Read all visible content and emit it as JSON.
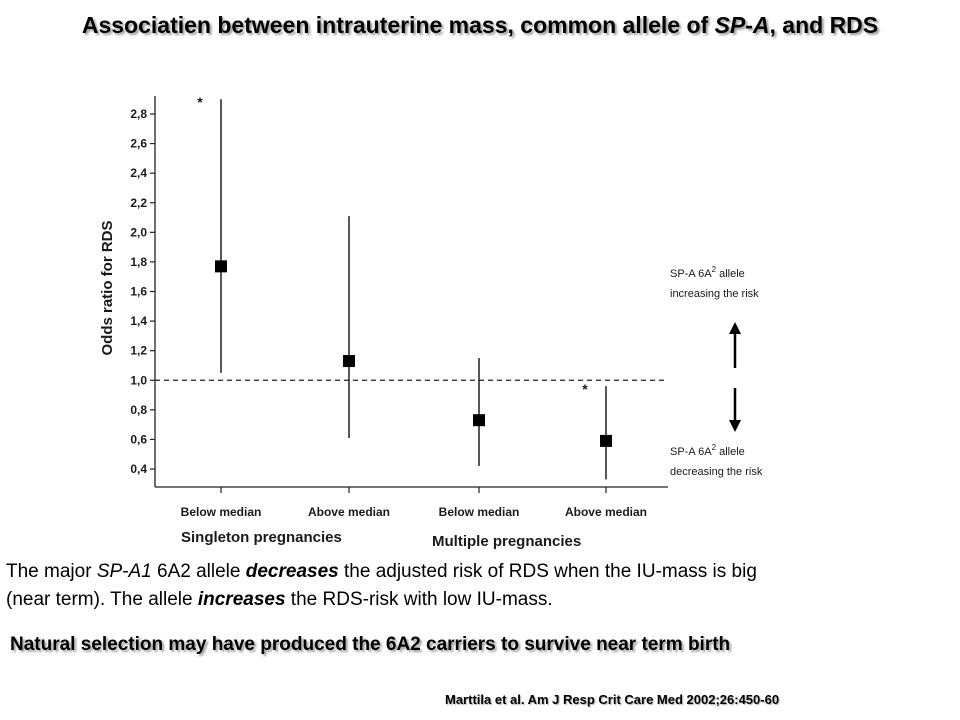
{
  "slide": {
    "title_prefix": "Associatien between intrauterine mass, common allele of ",
    "title_gene": "SP-A",
    "title_suffix": ", and RDS",
    "body_line1_pre": "The major ",
    "body_line1_gene": "SP-A1",
    "body_line1_mid": " 6A2 allele ",
    "body_line1_verb": "decreases",
    "body_line1_post": " the adjusted risk of RDS when the IU-mass is big",
    "body_line2_pre": "(near term). The allele ",
    "body_line2_verb": "increases",
    "body_line2_post": " the RDS-risk with low IU-mass.",
    "conclusion": "Natural selection may have produced the 6A2 carriers to survive near term birth",
    "citation": "Marttila et al. Am J Resp Crit Care Med  2002;26:450-60"
  },
  "chart_data": {
    "type": "scatter",
    "title": "",
    "ylabel": "Odds ratio for RDS",
    "ylim": [
      0.3,
      2.9
    ],
    "yticks": [
      0.4,
      0.6,
      0.8,
      1.0,
      1.2,
      1.4,
      1.6,
      1.8,
      2.0,
      2.2,
      2.4,
      2.6,
      2.8
    ],
    "ytick_labels": [
      "0,4",
      "0,6",
      "0,8",
      "1,0",
      "1,2",
      "1,4",
      "1,6",
      "1,8",
      "2,0",
      "2,2",
      "2,4",
      "2,6",
      "2,8"
    ],
    "reference_line": 1.0,
    "groups": [
      {
        "label": "Singleton pregnancies",
        "categories": [
          "Below median",
          "Above median"
        ]
      },
      {
        "label": "Multiple pregnancies",
        "categories": [
          "Below median",
          "Above median"
        ]
      }
    ],
    "points": [
      {
        "group": "Singleton pregnancies",
        "category": "Below median",
        "odds_ratio": 1.77,
        "ci_low": 1.05,
        "ci_high": 2.9,
        "significant": true
      },
      {
        "group": "Singleton pregnancies",
        "category": "Above median",
        "odds_ratio": 1.13,
        "ci_low": 0.61,
        "ci_high": 2.11,
        "significant": false
      },
      {
        "group": "Multiple pregnancies",
        "category": "Below median",
        "odds_ratio": 0.73,
        "ci_low": 0.42,
        "ci_high": 1.15,
        "significant": false
      },
      {
        "group": "Multiple pregnancies",
        "category": "Above median",
        "odds_ratio": 0.59,
        "ci_low": 0.33,
        "ci_high": 0.96,
        "significant": true
      }
    ],
    "significance_marker": "*",
    "annotations": {
      "up_line1_pre": "SP-A 6A",
      "up_line1_sup": "2",
      "up_line1_post": " allele",
      "up_line2": "increasing the risk",
      "down_line1_pre": "SP-A 6A",
      "down_line1_sup": "2",
      "down_line1_post": " allele",
      "down_line2": "decreasing the risk"
    }
  }
}
